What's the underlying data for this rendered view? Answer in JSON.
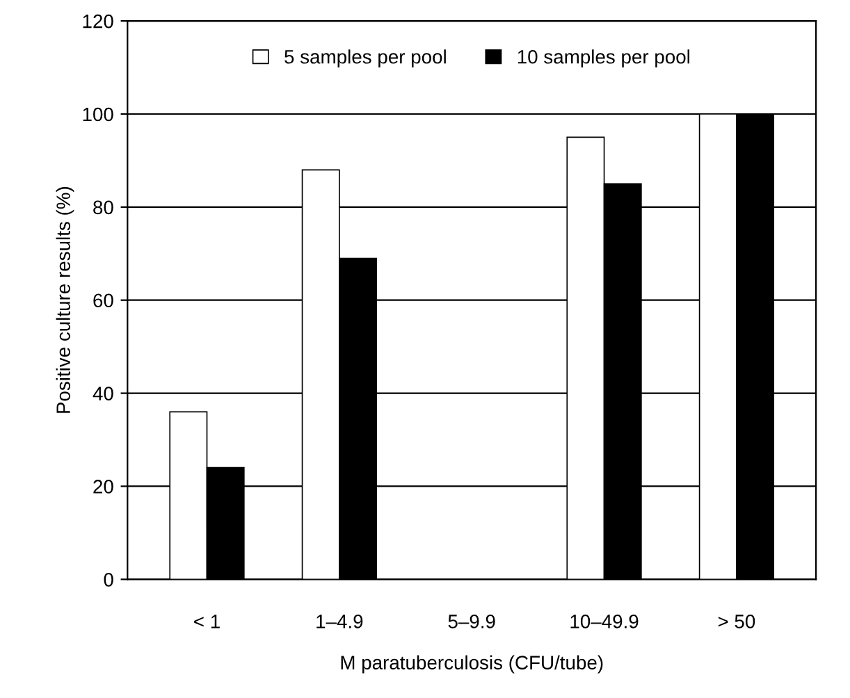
{
  "chart_data": {
    "type": "bar",
    "xlabel": "M paratuberculosis (CFU/tube)",
    "ylabel": "Positive culture results (%)",
    "categories": [
      "< 1",
      "1–4.9",
      "5–9.9",
      "10–49.9",
      "> 50"
    ],
    "series": [
      {
        "name": "5 samples per pool",
        "color": "#ffffff",
        "values": [
          36,
          88,
          null,
          95,
          100
        ]
      },
      {
        "name": "10 samples per pool",
        "color": "#000000",
        "values": [
          24,
          69,
          null,
          85,
          100
        ]
      }
    ],
    "ylim": [
      0,
      120
    ],
    "yticks": [
      0,
      20,
      40,
      60,
      80,
      100,
      120
    ],
    "grid": "y",
    "legend": "top"
  }
}
